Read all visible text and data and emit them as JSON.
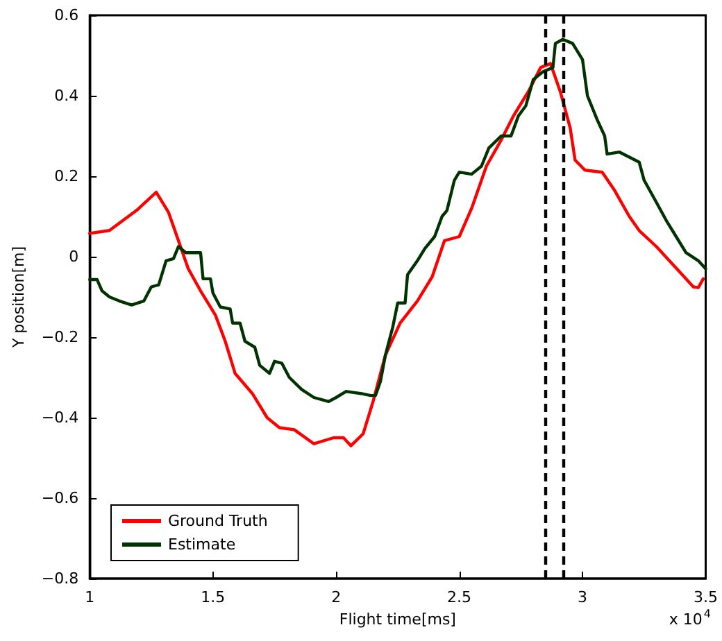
{
  "chart_data": {
    "type": "line",
    "xlabel": "Flight time[ms]",
    "ylabel": "Y position[m]",
    "annotations": [
      "x 10$^{4}$"
    ],
    "xlim": [
      1,
      3.5
    ],
    "xticks": [
      1,
      1.5,
      2,
      2.5,
      3,
      3.5
    ],
    "ylim": [
      -0.8,
      0.6
    ],
    "yticks": [
      -0.8,
      -0.6,
      -0.4,
      -0.2,
      0,
      0.2,
      0.4,
      0.6
    ],
    "grid": false,
    "legend": "bottom left",
    "marker": "none",
    "line_style": "solid",
    "ref_lines": [
      {
        "axis": "x",
        "value": 2.85,
        "color": "#000000",
        "line_style": "dashed"
      },
      {
        "axis": "x",
        "value": 2.92,
        "color": "#000000",
        "line_style": "dashed"
      }
    ],
    "series": [
      {
        "name": "Ground Truth",
        "color": "#ff0000",
        "x": [
          1.0,
          1.08,
          1.19,
          1.27,
          1.32,
          1.36,
          1.4,
          1.45,
          1.51,
          1.55,
          1.59,
          1.66,
          1.72,
          1.77,
          1.83,
          1.91,
          1.99,
          2.03,
          2.06,
          2.11,
          2.15,
          2.2,
          2.26,
          2.33,
          2.39,
          2.44,
          2.5,
          2.55,
          2.61,
          2.67,
          2.72,
          2.78,
          2.83,
          2.87,
          2.91,
          2.95,
          2.97,
          3.01,
          3.08,
          3.13,
          3.19,
          3.23,
          3.3,
          3.39,
          3.45,
          3.47,
          3.49
        ],
        "values": [
          0.058,
          0.065,
          0.115,
          0.16,
          0.11,
          0.04,
          -0.03,
          -0.085,
          -0.145,
          -0.21,
          -0.29,
          -0.34,
          -0.4,
          -0.425,
          -0.43,
          -0.465,
          -0.45,
          -0.45,
          -0.47,
          -0.44,
          -0.36,
          -0.245,
          -0.165,
          -0.11,
          -0.05,
          0.04,
          0.05,
          0.12,
          0.225,
          0.29,
          0.35,
          0.41,
          0.47,
          0.48,
          0.41,
          0.32,
          0.24,
          0.215,
          0.21,
          0.165,
          0.1,
          0.065,
          0.025,
          -0.035,
          -0.075,
          -0.077,
          -0.055
        ]
      },
      {
        "name": "Estimate",
        "color": "#003300",
        "x": [
          1.0,
          1.03,
          1.05,
          1.08,
          1.12,
          1.17,
          1.22,
          1.25,
          1.28,
          1.31,
          1.34,
          1.36,
          1.39,
          1.45,
          1.46,
          1.49,
          1.5,
          1.53,
          1.57,
          1.58,
          1.61,
          1.63,
          1.67,
          1.69,
          1.73,
          1.75,
          1.78,
          1.81,
          1.86,
          1.91,
          1.97,
          2.0,
          2.04,
          2.1,
          2.14,
          2.16,
          2.18,
          2.2,
          2.23,
          2.25,
          2.28,
          2.29,
          2.33,
          2.36,
          2.4,
          2.43,
          2.45,
          2.48,
          2.5,
          2.55,
          2.59,
          2.62,
          2.67,
          2.71,
          2.74,
          2.77,
          2.8,
          2.84,
          2.88,
          2.89,
          2.92,
          2.96,
          3.0,
          3.02,
          3.06,
          3.09,
          3.1,
          3.15,
          3.23,
          3.25,
          3.3,
          3.34,
          3.38,
          3.42,
          3.47,
          3.5
        ],
        "values": [
          -0.057,
          -0.057,
          -0.085,
          -0.1,
          -0.11,
          -0.12,
          -0.11,
          -0.075,
          -0.07,
          -0.01,
          -0.005,
          0.025,
          0.01,
          0.01,
          -0.055,
          -0.055,
          -0.09,
          -0.125,
          -0.13,
          -0.165,
          -0.165,
          -0.21,
          -0.225,
          -0.27,
          -0.29,
          -0.26,
          -0.265,
          -0.3,
          -0.33,
          -0.35,
          -0.36,
          -0.35,
          -0.335,
          -0.34,
          -0.345,
          -0.345,
          -0.31,
          -0.245,
          -0.175,
          -0.115,
          -0.115,
          -0.045,
          -0.01,
          0.02,
          0.05,
          0.1,
          0.115,
          0.19,
          0.21,
          0.205,
          0.225,
          0.27,
          0.3,
          0.3,
          0.35,
          0.375,
          0.44,
          0.46,
          0.47,
          0.53,
          0.54,
          0.53,
          0.49,
          0.4,
          0.34,
          0.3,
          0.255,
          0.26,
          0.235,
          0.19,
          0.135,
          0.09,
          0.05,
          0.01,
          -0.01,
          -0.03
        ]
      }
    ]
  }
}
